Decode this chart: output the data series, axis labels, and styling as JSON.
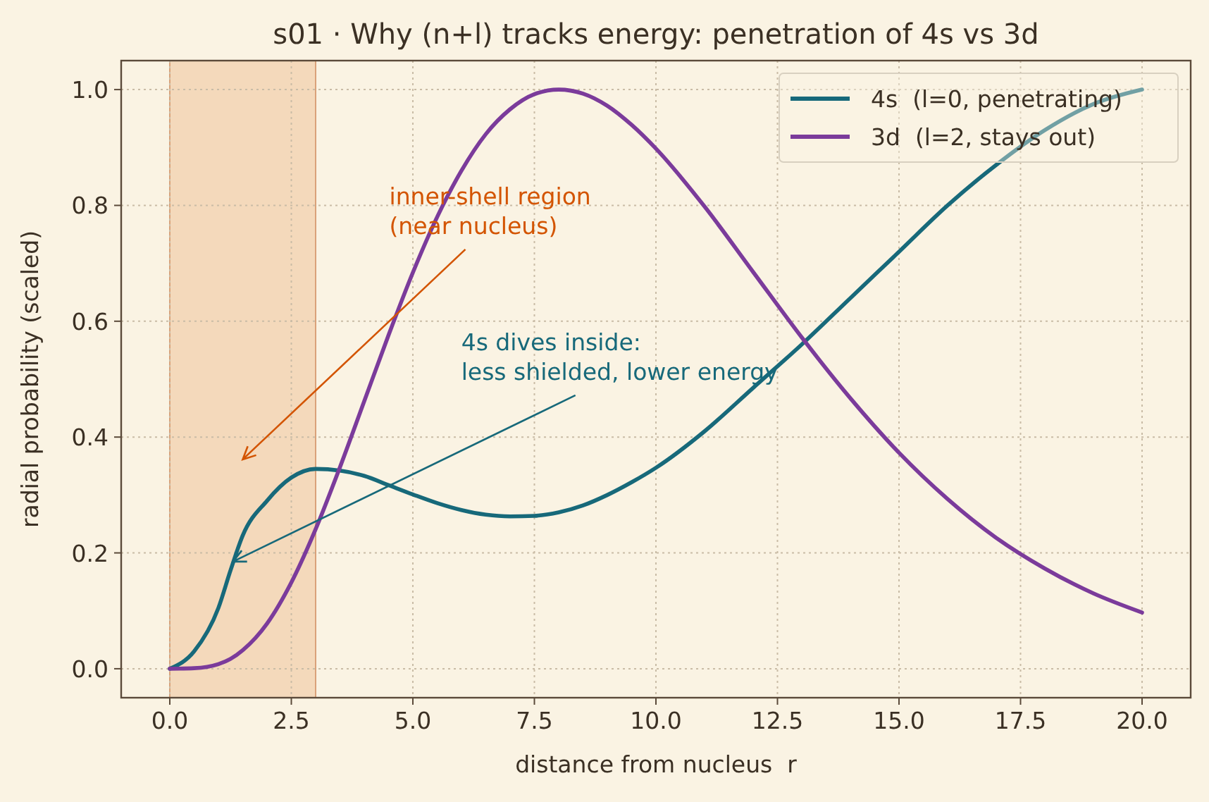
{
  "chart_data": {
    "type": "line",
    "title": "s01 · Why (n+l) tracks energy: penetration of 4s vs 3d",
    "xlabel": "distance from nucleus  r",
    "ylabel": "radial probability (scaled)",
    "x": [
      0,
      0.5,
      1,
      1.25,
      1.5,
      2,
      2.5,
      3,
      3.5,
      4,
      4.5,
      5,
      5.5,
      6,
      6.5,
      7,
      7.5,
      8,
      8.5,
      9,
      9.5,
      10,
      11,
      12,
      13,
      14,
      15,
      16,
      17,
      18,
      19,
      20
    ],
    "series": [
      {
        "name": "4s  (l=0, penetrating)",
        "color": "#17697a",
        "values": [
          0,
          0.03,
          0.105,
          0.17,
          0.23,
          0.29,
          0.33,
          0.345,
          0.342,
          0.333,
          0.317,
          0.301,
          0.286,
          0.274,
          0.266,
          0.263,
          0.264,
          0.27,
          0.282,
          0.3,
          0.322,
          0.347,
          0.41,
          0.485,
          0.56,
          0.64,
          0.72,
          0.8,
          0.87,
          0.93,
          0.975,
          1.0
        ]
      },
      {
        "name": "3d  (l=2, stays out)",
        "color": "#7b3b9b",
        "values": [
          0,
          0.001,
          0.008,
          0.017,
          0.032,
          0.078,
          0.149,
          0.241,
          0.348,
          0.462,
          0.576,
          0.684,
          0.78,
          0.86,
          0.923,
          0.966,
          0.992,
          1.0,
          0.993,
          0.972,
          0.939,
          0.898,
          0.798,
          0.685,
          0.572,
          0.467,
          0.373,
          0.293,
          0.226,
          0.173,
          0.13,
          0.097
        ]
      }
    ],
    "xlim": [
      -1,
      21
    ],
    "ylim": [
      -0.05,
      1.05
    ],
    "xticks": [
      {
        "value": 0,
        "label": "0.0"
      },
      {
        "value": 2.5,
        "label": "2.5"
      },
      {
        "value": 5,
        "label": "5.0"
      },
      {
        "value": 7.5,
        "label": "7.5"
      },
      {
        "value": 10,
        "label": "10.0"
      },
      {
        "value": 12.5,
        "label": "12.5"
      },
      {
        "value": 15,
        "label": "15.0"
      },
      {
        "value": 17.5,
        "label": "17.5"
      },
      {
        "value": 20,
        "label": "20.0"
      }
    ],
    "yticks": [
      {
        "value": 0,
        "label": "0.0"
      },
      {
        "value": 0.2,
        "label": "0.2"
      },
      {
        "value": 0.4,
        "label": "0.4"
      },
      {
        "value": 0.6,
        "label": "0.6"
      },
      {
        "value": 0.8,
        "label": "0.8"
      },
      {
        "value": 1,
        "label": "1.0"
      }
    ],
    "bands": [
      {
        "axis": "x",
        "from": 0,
        "to": 3,
        "color": "#f0c8a0",
        "label": "inner-shell region\n(near nucleus)"
      }
    ],
    "annotations": [
      {
        "text": "4s dives inside:\nless shielded, lower energy",
        "x": 1.3,
        "y": 0.185
      }
    ],
    "grid": true,
    "legend": "top right",
    "marker": "none",
    "line_style": "solid"
  }
}
